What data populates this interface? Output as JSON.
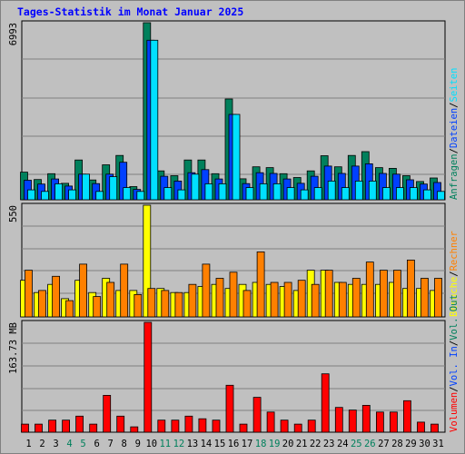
{
  "title": "Tages-Statistik im Monat Januar 2025",
  "colors": {
    "background": "#c0c0c0",
    "panel": "#c0c0c0",
    "title": "#0000ff",
    "anfragen": "#00805c",
    "dateien": "#0040ff",
    "seiten": "#00e0ff",
    "besuche": "#ffff00",
    "rechner": "#ff8000",
    "volumen": "#ff0000",
    "weekend_label": "#00805c",
    "weekday_label": "#000000",
    "separator": "#000000"
  },
  "chart_data": [
    {
      "type": "bar",
      "panel": "top",
      "ymax_label": "6993",
      "ylim": [
        0,
        6993
      ],
      "categories": [
        "1",
        "2",
        "3",
        "4",
        "5",
        "6",
        "7",
        "8",
        "9",
        "10",
        "11",
        "12",
        "13",
        "14",
        "15",
        "16",
        "17",
        "18",
        "19",
        "20",
        "21",
        "22",
        "23",
        "24",
        "25",
        "26",
        "27",
        "28",
        "29",
        "30",
        "31"
      ],
      "weekend": [
        false,
        false,
        false,
        true,
        true,
        false,
        false,
        false,
        false,
        false,
        true,
        true,
        false,
        false,
        false,
        false,
        false,
        true,
        true,
        false,
        false,
        false,
        false,
        false,
        true,
        true,
        false,
        false,
        false,
        false,
        false
      ],
      "series": [
        {
          "name": "Anfragen",
          "values": [
            1090,
            800,
            1030,
            650,
            1570,
            780,
            1380,
            1750,
            520,
            6993,
            1140,
            950,
            1570,
            1570,
            1030,
            3980,
            830,
            1300,
            1270,
            1030,
            880,
            1140,
            1740,
            1300,
            1750,
            1900,
            1270,
            1240,
            950,
            720,
            860
          ]
        },
        {
          "name": "Dateien",
          "values": [
            770,
            620,
            820,
            540,
            1010,
            640,
            1010,
            1480,
            410,
            6300,
            930,
            740,
            1070,
            1190,
            820,
            3370,
            640,
            1070,
            1040,
            820,
            650,
            930,
            1330,
            1040,
            1330,
            1420,
            1040,
            1010,
            790,
            620,
            680
          ]
        },
        {
          "name": "Seiten",
          "values": [
            390,
            330,
            630,
            390,
            1010,
            330,
            910,
            480,
            330,
            6300,
            480,
            390,
            1010,
            630,
            630,
            3370,
            480,
            630,
            630,
            480,
            390,
            480,
            740,
            480,
            740,
            740,
            480,
            480,
            480,
            390,
            330
          ]
        }
      ],
      "right_labels": [
        "Anfragen",
        "Dateien",
        "Seiten"
      ]
    },
    {
      "type": "bar",
      "panel": "middle",
      "ymax_label": "550",
      "ylim": [
        0,
        550
      ],
      "categories": [
        "1",
        "2",
        "3",
        "4",
        "5",
        "6",
        "7",
        "8",
        "9",
        "10",
        "11",
        "12",
        "13",
        "14",
        "15",
        "16",
        "17",
        "18",
        "19",
        "20",
        "21",
        "22",
        "23",
        "24",
        "25",
        "26",
        "27",
        "28",
        "29",
        "30",
        "31"
      ],
      "series": [
        {
          "name": "Besuche",
          "values": [
            180,
            120,
            160,
            90,
            180,
            120,
            190,
            130,
            130,
            550,
            140,
            120,
            120,
            150,
            160,
            140,
            160,
            170,
            160,
            150,
            130,
            230,
            230,
            170,
            160,
            160,
            160,
            170,
            140,
            140,
            130
          ]
        },
        {
          "name": "Rechner",
          "values": [
            230,
            130,
            200,
            80,
            260,
            100,
            170,
            260,
            110,
            140,
            130,
            120,
            160,
            260,
            190,
            220,
            130,
            320,
            170,
            170,
            180,
            160,
            230,
            170,
            190,
            270,
            230,
            230,
            280,
            190,
            190
          ]
        }
      ],
      "right_labels": [
        "Besuche",
        "Rechner"
      ]
    },
    {
      "type": "bar",
      "panel": "bottom",
      "ymax_label": "163.73 MB",
      "ylim": [
        0,
        163.73
      ],
      "categories": [
        "1",
        "2",
        "3",
        "4",
        "5",
        "6",
        "7",
        "8",
        "9",
        "10",
        "11",
        "12",
        "13",
        "14",
        "15",
        "16",
        "17",
        "18",
        "19",
        "20",
        "21",
        "22",
        "23",
        "24",
        "25",
        "26",
        "27",
        "28",
        "29",
        "30",
        "31"
      ],
      "series": [
        {
          "name": "Volumen",
          "values": [
            12,
            12,
            18,
            18,
            24,
            12,
            55,
            24,
            8,
            163.73,
            18,
            18,
            24,
            20,
            18,
            70,
            12,
            52,
            30,
            18,
            12,
            18,
            87,
            37,
            33,
            40,
            30,
            30,
            47,
            15,
            12
          ]
        }
      ],
      "right_labels": [
        "Volumen",
        "Vol. In",
        "Vol. Out"
      ]
    }
  ],
  "right_label_colors": [
    "#ff0000",
    "#0040ff",
    "#00805c"
  ]
}
